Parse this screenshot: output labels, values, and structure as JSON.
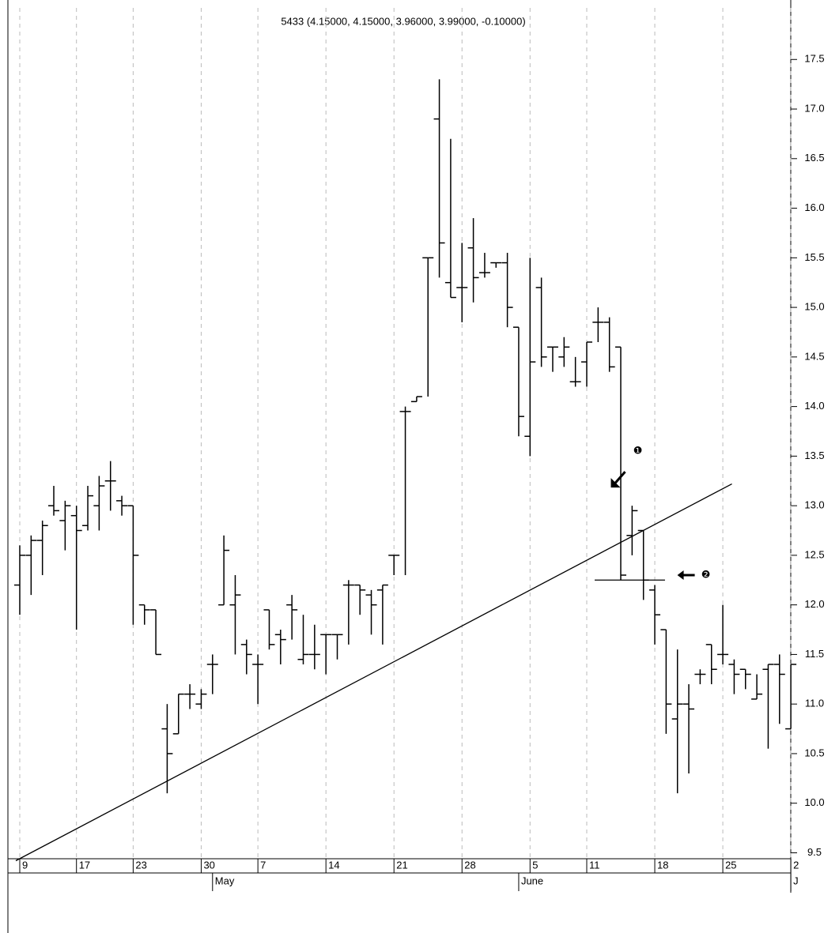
{
  "chart_data": {
    "type": "ohlc",
    "title": "5433 (4.15000, 4.15000, 3.96000, 3.99000, -0.10000)",
    "categories": [
      "9",
      null,
      null,
      null,
      null,
      "17",
      null,
      null,
      null,
      null,
      "23",
      null,
      null,
      null,
      null,
      null,
      "30",
      null,
      null,
      null,
      null,
      "7",
      null,
      null,
      null,
      null,
      null,
      "14",
      null,
      null,
      null,
      null,
      null,
      "21",
      null,
      null,
      null,
      null,
      null,
      "28",
      null,
      null,
      null,
      null,
      null,
      "5",
      null,
      null,
      null,
      null,
      "11",
      null,
      null,
      null,
      null,
      null,
      "18",
      null,
      null,
      null,
      null,
      null,
      "25",
      null,
      null,
      null,
      null,
      null,
      "2"
    ],
    "months": [
      null,
      null,
      null,
      null,
      null,
      null,
      null,
      null,
      null,
      null,
      null,
      null,
      null,
      null,
      null,
      null,
      null,
      "May",
      null,
      null,
      null,
      null,
      null,
      null,
      null,
      null,
      null,
      null,
      null,
      null,
      null,
      null,
      null,
      null,
      null,
      null,
      null,
      null,
      null,
      null,
      null,
      null,
      null,
      null,
      "June",
      null,
      null,
      null,
      null,
      null,
      null,
      null,
      null,
      null,
      null,
      null,
      null,
      null,
      null,
      null,
      null,
      null,
      null,
      null,
      null,
      null,
      null,
      null,
      "J"
    ],
    "color": "#000000",
    "open": [
      12.2,
      12.5,
      12.65,
      13.0,
      12.85,
      12.9,
      12.8,
      13.0,
      13.25,
      13.05,
      13.0,
      12.0,
      11.95,
      10.75,
      10.7,
      11.1,
      11.0,
      11.4,
      12.0,
      12.0,
      11.6,
      11.4,
      11.95,
      11.7,
      12.0,
      11.45,
      11.5,
      11.7,
      11.7,
      12.2,
      12.2,
      12.1,
      12.15,
      12.5,
      13.95,
      14.05,
      15.5,
      16.9,
      15.25,
      15.2,
      15.6,
      15.35,
      15.45,
      15.45,
      14.8,
      13.7,
      15.2,
      14.6,
      14.5,
      14.25,
      14.45,
      14.85,
      14.85,
      14.6,
      12.7,
      12.75,
      12.15,
      11.75,
      10.85,
      11.0,
      11.3,
      11.6,
      11.5,
      11.4,
      11.35,
      11.05,
      11.35,
      11.4,
      10.75
    ],
    "high": [
      12.6,
      12.7,
      12.85,
      13.2,
      13.05,
      13.0,
      13.2,
      13.3,
      13.45,
      13.1,
      13.0,
      12.0,
      11.95,
      11.0,
      11.1,
      11.2,
      11.15,
      11.5,
      12.7,
      12.3,
      11.65,
      11.5,
      11.95,
      11.75,
      12.1,
      11.9,
      11.8,
      11.7,
      11.7,
      12.25,
      12.2,
      12.15,
      12.2,
      12.5,
      14.0,
      14.1,
      15.5,
      17.3,
      16.7,
      15.65,
      15.9,
      15.55,
      15.45,
      15.55,
      14.8,
      15.5,
      15.3,
      14.6,
      14.7,
      14.5,
      14.65,
      15.0,
      14.9,
      14.6,
      13.0,
      12.75,
      12.2,
      11.75,
      11.55,
      11.2,
      11.35,
      11.6,
      12.0,
      11.45,
      11.35,
      11.3,
      11.4,
      11.5,
      11.4
    ],
    "low": [
      11.9,
      12.1,
      12.3,
      12.9,
      12.55,
      11.75,
      12.75,
      12.75,
      12.95,
      12.9,
      11.8,
      11.8,
      11.5,
      10.1,
      10.7,
      10.95,
      10.95,
      11.1,
      12.0,
      11.5,
      11.3,
      11.0,
      11.55,
      11.4,
      11.65,
      11.4,
      11.35,
      11.3,
      11.45,
      11.6,
      11.9,
      11.7,
      11.6,
      12.3,
      12.3,
      14.05,
      14.1,
      15.3,
      15.1,
      14.85,
      15.05,
      15.3,
      15.4,
      14.8,
      13.7,
      13.5,
      14.4,
      14.35,
      14.4,
      14.2,
      14.2,
      14.65,
      14.35,
      12.25,
      12.5,
      12.05,
      11.6,
      10.7,
      10.1,
      10.3,
      11.2,
      11.2,
      11.4,
      11.1,
      11.15,
      11.05,
      10.55,
      10.8,
      10.75
    ],
    "close": [
      12.5,
      12.65,
      12.8,
      12.95,
      13.0,
      12.75,
      13.1,
      13.2,
      13.25,
      13.0,
      12.5,
      11.95,
      11.5,
      10.5,
      11.1,
      11.1,
      11.1,
      11.4,
      12.55,
      12.1,
      11.5,
      11.4,
      11.6,
      11.65,
      11.95,
      11.5,
      11.5,
      11.7,
      11.7,
      12.2,
      12.15,
      12.0,
      12.2,
      12.5,
      13.95,
      14.1,
      15.5,
      15.65,
      15.1,
      15.2,
      15.3,
      15.35,
      15.45,
      15.0,
      13.9,
      14.45,
      14.5,
      14.6,
      14.6,
      14.25,
      14.65,
      14.85,
      14.4,
      12.3,
      12.95,
      12.25,
      11.9,
      11.0,
      11.0,
      10.95,
      11.3,
      11.35,
      11.5,
      11.3,
      11.3,
      11.1,
      11.4,
      11.3,
      11.4
    ],
    "lines": [
      {
        "x": [
          -0.35,
          62.8
        ],
        "y": [
          9.42,
          13.22
        ]
      },
      {
        "x": [
          50.7,
          56.9
        ],
        "y": [
          12.25,
          12.25
        ]
      }
    ],
    "annotations": [
      {
        "text": "❶",
        "x": 54.5,
        "y": 13.55
      },
      {
        "text": "❷",
        "x": 60.5,
        "y": 12.3
      }
    ],
    "ylim": [
      9.44,
      18.02
    ],
    "yticks": [
      9.5,
      {
        "value": 10,
        "label": "10.0"
      },
      10.5,
      {
        "value": 11,
        "label": "11.0"
      },
      11.5,
      {
        "value": 12,
        "label": "12.0"
      },
      12.5,
      {
        "value": 13,
        "label": "13.0"
      },
      13.5,
      {
        "value": 14,
        "label": "14.0"
      },
      14.5,
      {
        "value": 15,
        "label": "15.0"
      },
      15.5,
      {
        "value": 16,
        "label": "16.0"
      },
      16.5,
      {
        "value": 17,
        "label": "17.0"
      },
      17.5
    ],
    "grid": true
  }
}
